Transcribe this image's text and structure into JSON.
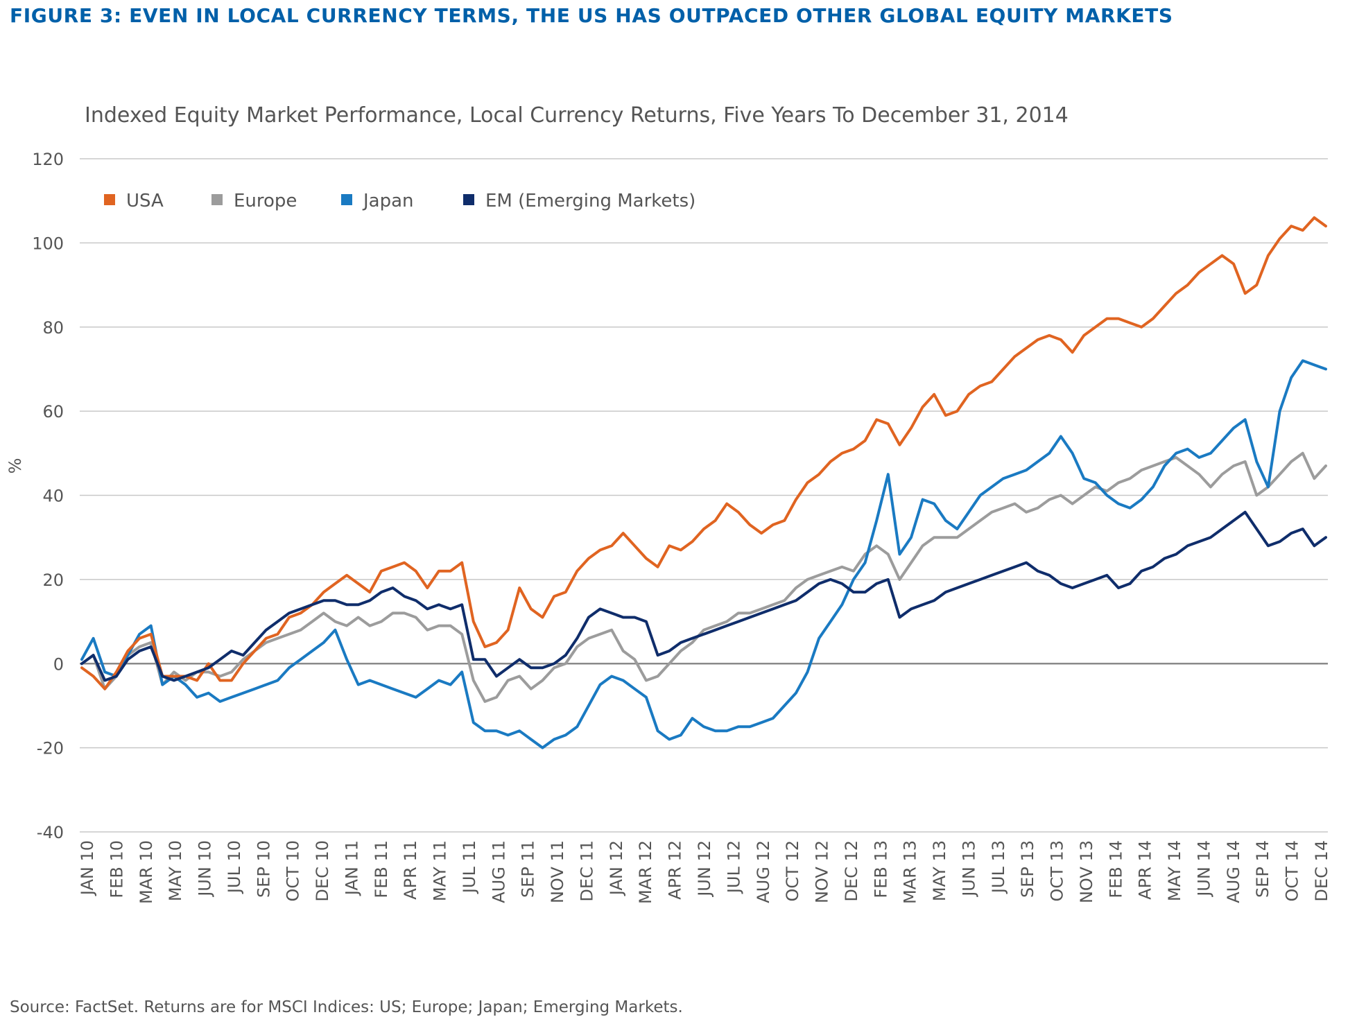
{
  "figure_title": "FIGURE 3: EVEN IN LOCAL CURRENCY TERMS, THE US HAS OUTPACED OTHER GLOBAL EQUITY MARKETS",
  "source_note": "Source: FactSet. Returns are for MSCI Indices: US; Europe; Japan; Emerging Markets.",
  "colors": {
    "title": "#0060a9",
    "USA": "#e06421",
    "Europe": "#9c9c9c",
    "Japan": "#1a7ac2",
    "EM": "#0f2d6b",
    "grid": "#c8c8c8",
    "zero_line": "#8a8a8a",
    "text": "#555555"
  },
  "chart_data": {
    "type": "line",
    "title": "Indexed Equity Market Performance, Local Currency Returns, Five Years To December 31, 2014",
    "ylabel": "%",
    "xlabel": "",
    "ylim": [
      -40,
      120
    ],
    "yticks": [
      120,
      100,
      80,
      60,
      40,
      20,
      0,
      -20,
      -40
    ],
    "grid": "horizontal",
    "legend_position": "top-left",
    "x_tick_labels": [
      "JAN 10",
      "FEB 10",
      "MAR 10",
      "MAY 10",
      "JUN 10",
      "JUL 10",
      "SEP 10",
      "OCT 10",
      "DEC 10",
      "JAN 11",
      "FEB 11",
      "APR 11",
      "MAY 11",
      "JUL 11",
      "AUG 11",
      "SEP 11",
      "NOV 11",
      "DEC 11",
      "JAN 12",
      "MAR 12",
      "APR 12",
      "JUN 12",
      "JUL 12",
      "AUG 12",
      "OCT 12",
      "NOV 12",
      "DEC 12",
      "FEB 13",
      "MAR 13",
      "MAY 13",
      "JUN 13",
      "JUL 13",
      "SEP 13",
      "OCT 13",
      "NOV 13",
      "FEB 14",
      "APR 14",
      "MAY 14",
      "JUN 14",
      "AUG 14",
      "SEP 14",
      "OCT 14",
      "DEC 14"
    ],
    "series": [
      {
        "name": "USA",
        "values": [
          -1,
          -3,
          -6,
          -2,
          3,
          6,
          7,
          -3,
          -3,
          -3,
          -4,
          0,
          -4,
          -4,
          0,
          3,
          6,
          7,
          11,
          12,
          14,
          17,
          19,
          21,
          19,
          17,
          22,
          23,
          24,
          22,
          18,
          22,
          22,
          24,
          10,
          4,
          5,
          8,
          18,
          13,
          11,
          16,
          17,
          22,
          25,
          27,
          28,
          31,
          28,
          25,
          23,
          28,
          27,
          29,
          32,
          34,
          38,
          36,
          33,
          31,
          33,
          34,
          39,
          43,
          45,
          48,
          50,
          51,
          53,
          58,
          57,
          52,
          56,
          61,
          64,
          59,
          60,
          64,
          66,
          67,
          70,
          73,
          75,
          77,
          78,
          77,
          74,
          78,
          80,
          82,
          82,
          81,
          80,
          82,
          85,
          88,
          90,
          93,
          95,
          97,
          95,
          88,
          90,
          97,
          101,
          104,
          103,
          106,
          104
        ]
      },
      {
        "name": "Europe",
        "values": [
          0,
          2,
          -6,
          -3,
          2,
          4,
          5,
          -5,
          -2,
          -4,
          -2,
          -2,
          -3,
          -2,
          1,
          3,
          5,
          6,
          7,
          8,
          10,
          12,
          10,
          9,
          11,
          9,
          10,
          12,
          12,
          11,
          8,
          9,
          9,
          7,
          -4,
          -9,
          -8,
          -4,
          -3,
          -6,
          -4,
          -1,
          0,
          4,
          6,
          7,
          8,
          3,
          1,
          -4,
          -3,
          0,
          3,
          5,
          8,
          9,
          10,
          12,
          12,
          13,
          14,
          15,
          18,
          20,
          21,
          22,
          23,
          22,
          26,
          28,
          26,
          20,
          24,
          28,
          30,
          30,
          30,
          32,
          34,
          36,
          37,
          38,
          36,
          37,
          39,
          40,
          38,
          40,
          42,
          41,
          43,
          44,
          46,
          47,
          48,
          49,
          47,
          45,
          42,
          45,
          47,
          48,
          40,
          42,
          45,
          48,
          50,
          44,
          47
        ]
      },
      {
        "name": "Japan",
        "values": [
          1,
          6,
          -2,
          -3,
          2,
          7,
          9,
          -5,
          -3,
          -5,
          -8,
          -7,
          -9,
          -8,
          -7,
          -6,
          -5,
          -4,
          -1,
          1,
          3,
          5,
          8,
          1,
          -5,
          -4,
          -5,
          -6,
          -7,
          -8,
          -6,
          -4,
          -5,
          -2,
          -14,
          -16,
          -16,
          -17,
          -16,
          -18,
          -20,
          -18,
          -17,
          -15,
          -10,
          -5,
          -3,
          -4,
          -6,
          -8,
          -16,
          -18,
          -17,
          -13,
          -15,
          -16,
          -16,
          -15,
          -15,
          -14,
          -13,
          -10,
          -7,
          -2,
          6,
          10,
          14,
          20,
          24,
          34,
          45,
          26,
          30,
          39,
          38,
          34,
          32,
          36,
          40,
          42,
          44,
          45,
          46,
          48,
          50,
          54,
          50,
          44,
          43,
          40,
          38,
          37,
          39,
          42,
          47,
          50,
          51,
          49,
          50,
          53,
          56,
          58,
          48,
          42,
          60,
          68,
          72,
          71,
          70
        ]
      },
      {
        "name": "EM (Emerging Markets)",
        "values": [
          0,
          2,
          -4,
          -3,
          1,
          3,
          4,
          -3,
          -4,
          -3,
          -2,
          -1,
          1,
          3,
          2,
          5,
          8,
          10,
          12,
          13,
          14,
          15,
          15,
          14,
          14,
          15,
          17,
          18,
          16,
          15,
          13,
          14,
          13,
          14,
          1,
          1,
          -3,
          -1,
          1,
          -1,
          -1,
          0,
          2,
          6,
          11,
          13,
          12,
          11,
          11,
          10,
          2,
          3,
          5,
          6,
          7,
          8,
          9,
          10,
          11,
          12,
          13,
          14,
          15,
          17,
          19,
          20,
          19,
          17,
          17,
          19,
          20,
          11,
          13,
          14,
          15,
          17,
          18,
          19,
          20,
          21,
          22,
          23,
          24,
          22,
          21,
          19,
          18,
          19,
          20,
          21,
          18,
          19,
          22,
          23,
          25,
          26,
          28,
          29,
          30,
          32,
          34,
          36,
          32,
          28,
          29,
          31,
          32,
          28,
          30
        ]
      }
    ]
  }
}
